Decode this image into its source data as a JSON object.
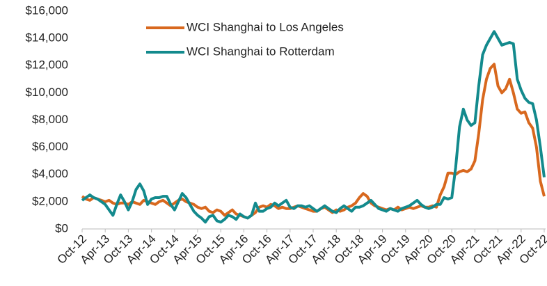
{
  "chart_data": {
    "type": "line",
    "categories": [
      "Oct-12",
      null,
      null,
      null,
      null,
      null,
      "Apr-13",
      null,
      null,
      null,
      null,
      null,
      "Oct-13",
      null,
      null,
      null,
      null,
      null,
      "Apr-14",
      null,
      null,
      null,
      null,
      null,
      "Oct-14",
      null,
      null,
      null,
      null,
      null,
      "Apr-15",
      null,
      null,
      null,
      null,
      null,
      "Oct-15",
      null,
      null,
      null,
      null,
      null,
      "Apr-16",
      null,
      null,
      null,
      null,
      null,
      "Oct-16",
      null,
      null,
      null,
      null,
      null,
      "Apr-17",
      null,
      null,
      null,
      null,
      null,
      "Oct-17",
      null,
      null,
      null,
      null,
      null,
      "Apr-18",
      null,
      null,
      null,
      null,
      null,
      "Oct-18",
      null,
      null,
      null,
      null,
      null,
      "Apr-19",
      null,
      null,
      null,
      null,
      null,
      "Oct-19",
      null,
      null,
      null,
      null,
      null,
      "Apr-20",
      null,
      null,
      null,
      null,
      null,
      "Oct-20",
      null,
      null,
      null,
      null,
      null,
      "Apr-21",
      null,
      null,
      null,
      null,
      null,
      "Oct-21",
      null,
      null,
      null,
      null,
      null,
      "Apr-22",
      null,
      null,
      null,
      null,
      null,
      "Oct-22"
    ],
    "series": [
      {
        "name": "WCI Shanghai to Los Angeles",
        "color": "#d8681e",
        "values": [
          2400,
          2200,
          2100,
          2300,
          2200,
          2100,
          2000,
          2100,
          1900,
          1800,
          1900,
          1900,
          1800,
          2000,
          1900,
          1800,
          2100,
          2000,
          1900,
          1800,
          2000,
          2100,
          1900,
          1700,
          1900,
          2100,
          2200,
          2000,
          1900,
          1800,
          1600,
          1500,
          1600,
          1300,
          1200,
          1400,
          1300,
          1000,
          1200,
          1400,
          1100,
          1000,
          900,
          800,
          1000,
          1200,
          1600,
          1700,
          1600,
          1800,
          1700,
          1500,
          1600,
          1500,
          1500,
          1600,
          1700,
          1600,
          1500,
          1400,
          1300,
          1300,
          1500,
          1600,
          1400,
          1200,
          1400,
          1300,
          1400,
          1600,
          1700,
          1900,
          2300,
          2600,
          2400,
          1900,
          1700,
          1600,
          1500,
          1400,
          1500,
          1400,
          1600,
          1400,
          1500,
          1600,
          1500,
          1600,
          1700,
          1600,
          1600,
          1700,
          1600,
          2500,
          3100,
          4100,
          4100,
          4000,
          4200,
          4300,
          4200,
          4400,
          5000,
          7000,
          9500,
          11000,
          11800,
          12100,
          10500,
          10000,
          10300,
          11000,
          10000,
          8800,
          8500,
          8600,
          7800,
          7400,
          6000,
          3500,
          2400
        ]
      },
      {
        "name": "WCI Shanghai to Rotterdam",
        "color": "#138a8d",
        "values": [
          2100,
          2300,
          2500,
          2300,
          2200,
          2000,
          1800,
          1400,
          1000,
          1800,
          2500,
          2000,
          1400,
          2000,
          2900,
          3300,
          2800,
          1800,
          2200,
          2300,
          2300,
          2400,
          2400,
          1800,
          1400,
          2000,
          2600,
          2300,
          1800,
          1300,
          1000,
          800,
          500,
          900,
          1000,
          600,
          500,
          700,
          1000,
          900,
          700,
          1100,
          900,
          800,
          1000,
          1900,
          1300,
          1300,
          1500,
          1600,
          1900,
          1700,
          1900,
          2100,
          1600,
          1500,
          1700,
          1700,
          1600,
          1700,
          1500,
          1300,
          1500,
          1700,
          1500,
          1300,
          1200,
          1500,
          1700,
          1500,
          1300,
          1600,
          1600,
          1700,
          1900,
          2100,
          1800,
          1500,
          1400,
          1300,
          1500,
          1400,
          1300,
          1500,
          1600,
          1700,
          1900,
          2100,
          1800,
          1600,
          1500,
          1600,
          1800,
          1800,
          2300,
          2200,
          2300,
          4500,
          7500,
          8800,
          8000,
          7600,
          7800,
          10500,
          12800,
          13500,
          14000,
          14500,
          14000,
          13500,
          13600,
          13700,
          13600,
          11000,
          10200,
          9600,
          9300,
          9200,
          8000,
          6000,
          3800
        ]
      }
    ],
    "ylim": [
      0,
      16000
    ],
    "yticks": [
      {
        "value": 0,
        "label": "$0"
      },
      {
        "value": 2000,
        "label": "$2,000"
      },
      {
        "value": 4000,
        "label": "$4,000"
      },
      {
        "value": 6000,
        "label": "$6,000"
      },
      {
        "value": 8000,
        "label": "$8,000"
      },
      {
        "value": 10000,
        "label": "$10,000"
      },
      {
        "value": 12000,
        "label": "$12,000"
      },
      {
        "value": 14000,
        "label": "$14,000"
      },
      {
        "value": 16000,
        "label": "$16,000"
      }
    ],
    "grid": false
  }
}
